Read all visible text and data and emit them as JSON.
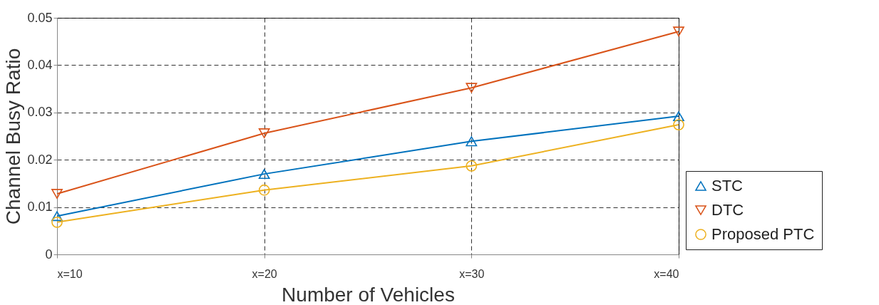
{
  "chart_data": {
    "type": "line",
    "xlabel": "Number of Vehicles",
    "ylabel": "Channel Busy Ratio",
    "x": [
      10,
      20,
      30,
      40
    ],
    "series": [
      {
        "name": "STC",
        "color": "#0072bd",
        "marker": "triangle",
        "values": [
          0.0081,
          0.017,
          0.0239,
          0.0292
        ]
      },
      {
        "name": "DTC",
        "color": "#d95319",
        "marker": "triangle-down",
        "values": [
          0.0128,
          0.0256,
          0.0352,
          0.0471
        ]
      },
      {
        "name": "Proposed PTC",
        "color": "#edb120",
        "marker": "circle",
        "values": [
          0.0068,
          0.0136,
          0.0187,
          0.0274
        ]
      }
    ],
    "xlim": [
      10,
      40
    ],
    "xticks": [
      {
        "value": 10,
        "label": "x=10"
      },
      {
        "value": 20,
        "label": "x=20"
      },
      {
        "value": 30,
        "label": "x=30"
      },
      {
        "value": 40,
        "label": "x=40"
      }
    ],
    "ylim": [
      0,
      0.05
    ],
    "yticks": [
      0,
      0.01,
      0.02,
      0.03,
      0.04,
      0.05
    ],
    "grid": true,
    "legend": "bottom right",
    "line_style": "solid"
  }
}
